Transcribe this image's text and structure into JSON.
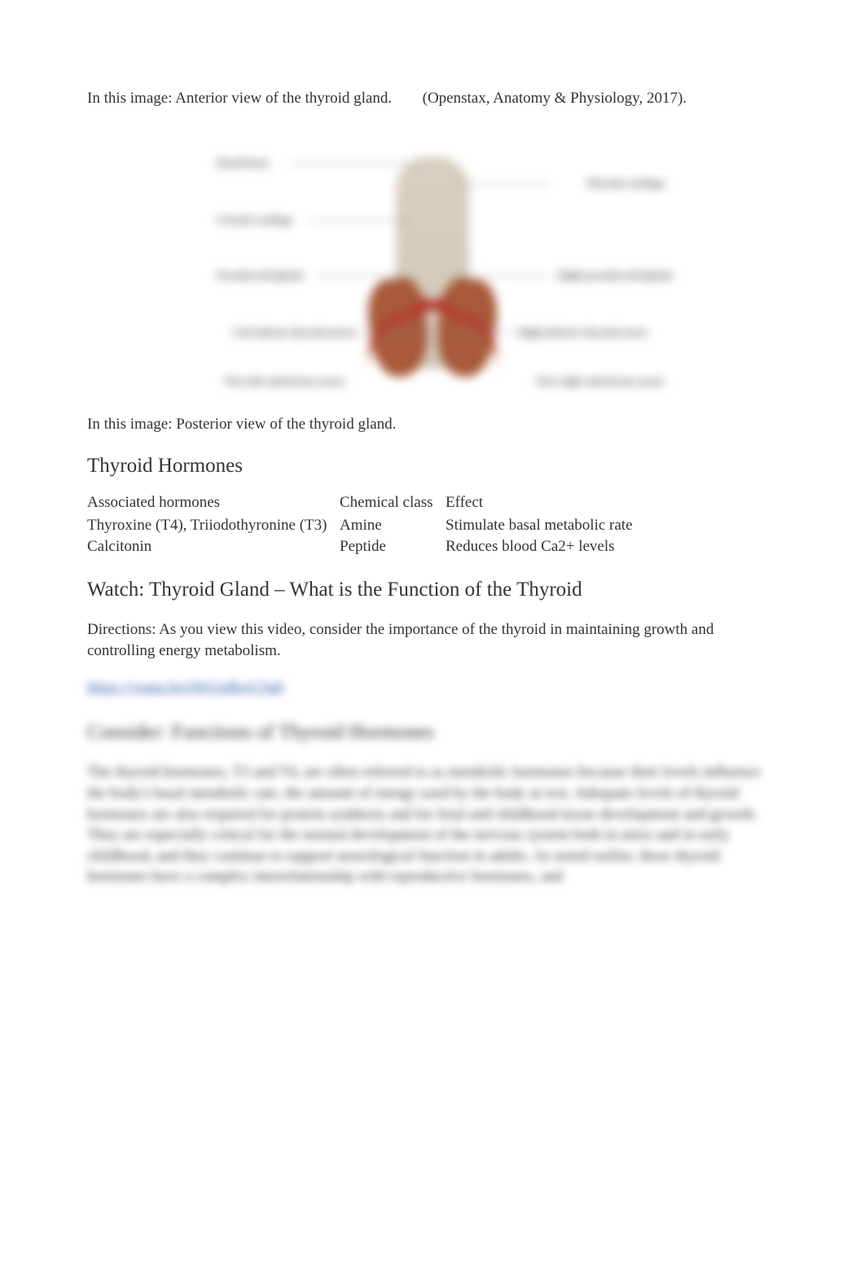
{
  "caption_top": {
    "left": "In this image: Anterior view of the thyroid gland.",
    "right": "(Openstax, Anatomy & Physiology, 2017)."
  },
  "diagram_labels": {
    "left": [
      "Hyoid bone",
      "Cricoid cartilage",
      "Parathyroid glands",
      "Left inferior thyroid artery",
      "First left subclavian artery"
    ],
    "right": [
      "Thyroid cartilage",
      "Right parathyroid glands",
      "Right inferior thyroid artery",
      "First right subclavian artery"
    ]
  },
  "caption_bottom": "In this image: Posterior view of the thyroid gland.",
  "hormones": {
    "heading": "Thyroid Hormones",
    "columns": [
      "Associated hormones",
      "Chemical class",
      "Effect"
    ],
    "rows": [
      [
        "Thyroxine (T4), Triiodothyronine (T3)",
        "Amine",
        "Stimulate basal metabolic rate"
      ],
      [
        "Calcitonin",
        "Peptide",
        "Reduces blood Ca2+ levels"
      ]
    ]
  },
  "watch": {
    "heading": "Watch: Thyroid Gland – What is the Function of the Thyroid",
    "directions": "Directions: As you view this video, consider the importance of the thyroid in maintaining growth and controlling energy metabolism.",
    "link_text": "https://youtu.be/iNrUpBwU3q0"
  },
  "consider": {
    "heading": "Consider: Functions of Thyroid Hormones",
    "paragraph": "The thyroid hormones, T3 and T4, are often referred to as metabolic hormones because their levels influence the body's basal metabolic rate, the amount of energy used by the body at rest. Adequate levels of thyroid hormones are also required for protein synthesis and for fetal and childhood tissue development and growth. They are especially critical for the normal development of the nervous system both in utero and in early childhood, and they continue to support neurological function in adults. As noted earlier, these thyroid hormones have a complex interrelationship with reproductive hormones, and"
  },
  "colors": {
    "text": "#333333",
    "link": "#2a5db0",
    "background": "#ffffff",
    "thyroid": "#a85a3a",
    "artery": "#b23a2e",
    "trachea": "#d8d0c0"
  }
}
